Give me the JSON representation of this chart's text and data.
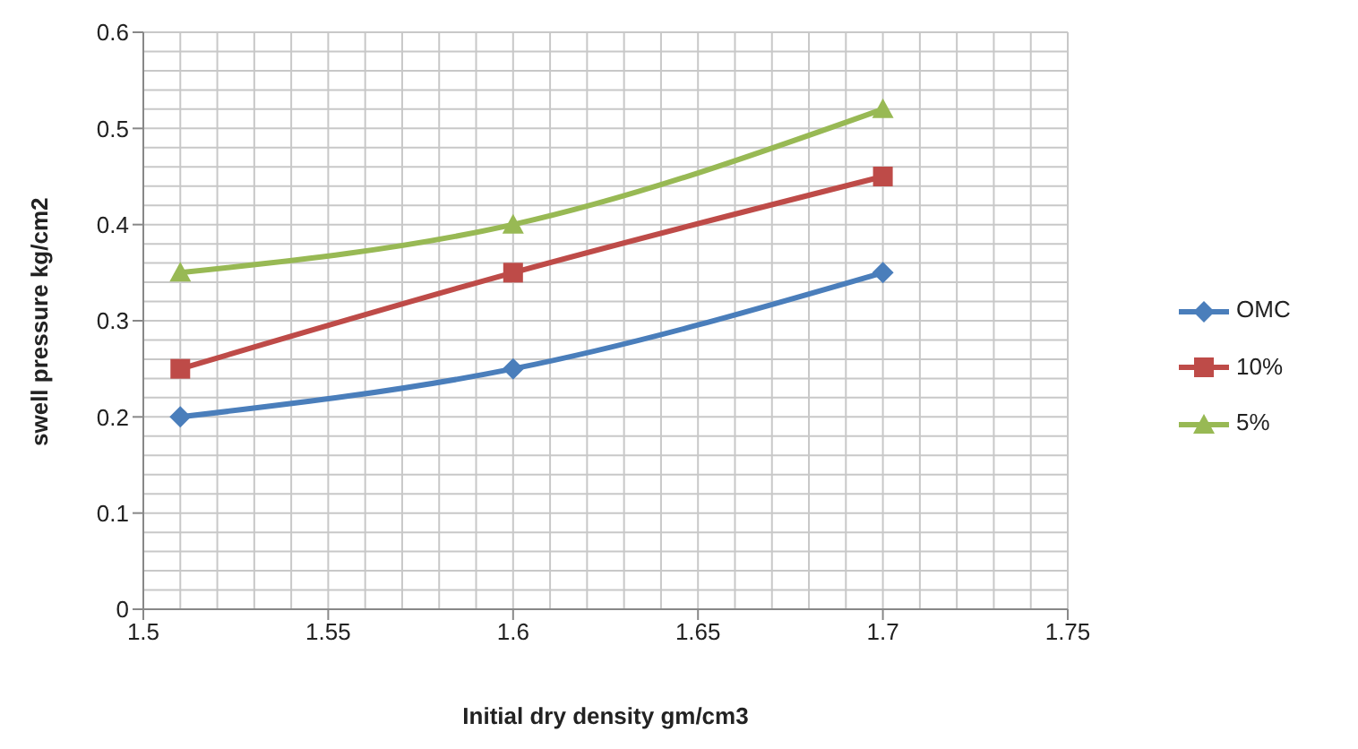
{
  "chart_data": {
    "type": "line",
    "xlabel": "Initial dry density gm/cm3",
    "ylabel": "swell pressure kg/cm2",
    "x": [
      1.51,
      1.6,
      1.7
    ],
    "series": [
      {
        "name": "OMC",
        "color": "#4a7ebb",
        "values": [
          0.2,
          0.25,
          0.35
        ],
        "marker": "diamond"
      },
      {
        "name": "10%",
        "color": "#be4b48",
        "values": [
          0.25,
          0.35,
          0.45
        ],
        "marker": "square"
      },
      {
        "name": "5%",
        "color": "#98b954",
        "values": [
          0.35,
          0.4,
          0.52
        ],
        "marker": "triangle"
      }
    ],
    "xlim": [
      1.5,
      1.75
    ],
    "xticks": [
      1.5,
      1.55,
      1.6,
      1.65,
      1.7,
      1.75
    ],
    "ylim": [
      0,
      0.6
    ],
    "yticks": [
      0,
      0.1,
      0.2,
      0.3,
      0.4,
      0.5,
      0.6
    ],
    "grid": true,
    "legend": "right",
    "line_style": "solid"
  }
}
